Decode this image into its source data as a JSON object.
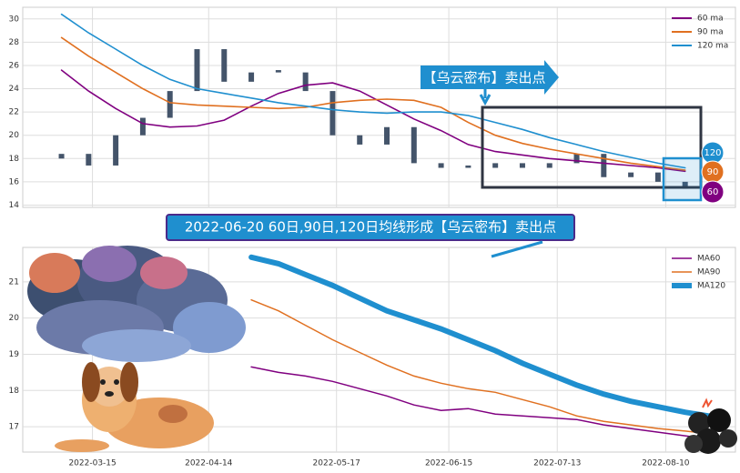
{
  "chart_data": [
    {
      "type": "candlestick",
      "x": [
        "2022-03-07",
        "2022-03-14",
        "2022-03-21",
        "2022-03-28",
        "2022-04-04",
        "2022-04-11",
        "2022-04-18",
        "2022-04-25",
        "2022-05-02",
        "2022-05-09",
        "2022-05-16",
        "2022-05-23",
        "2022-05-30",
        "2022-06-06",
        "2022-06-13",
        "2022-06-20",
        "2022-06-27",
        "2022-07-04",
        "2022-07-11",
        "2022-07-18",
        "2022-07-25",
        "2022-08-01",
        "2022-08-08",
        "2022-08-15"
      ],
      "open": [
        18.0,
        18.4,
        17.4,
        20.0,
        21.5,
        23.8,
        27.4,
        24.6,
        25.4,
        25.4,
        23.8,
        20.0,
        19.2,
        20.7,
        17.6,
        17.2,
        17.2,
        17.6,
        17.2,
        17.6,
        18.4,
        16.4,
        16.8,
        16.0
      ],
      "close": [
        18.4,
        17.4,
        20.0,
        21.5,
        23.8,
        27.4,
        24.6,
        25.4,
        25.6,
        23.8,
        20.0,
        19.2,
        20.7,
        17.6,
        17.2,
        17.4,
        17.6,
        17.2,
        17.6,
        18.4,
        16.4,
        16.8,
        16.0,
        15.4
      ],
      "color": "#44546a",
      "series": [
        {
          "name": "60 ma",
          "color": "#800080",
          "values": [
            25.6,
            23.8,
            22.3,
            21.0,
            20.7,
            20.8,
            21.3,
            22.5,
            23.6,
            24.3,
            24.5,
            23.8,
            22.6,
            21.4,
            20.4,
            19.2,
            18.6,
            18.3,
            18.0,
            17.8,
            17.6,
            17.4,
            17.2,
            16.9
          ]
        },
        {
          "name": "90 ma",
          "color": "#e07020",
          "values": [
            28.4,
            26.8,
            25.4,
            24.0,
            22.8,
            22.6,
            22.5,
            22.4,
            22.3,
            22.4,
            22.8,
            23.0,
            23.1,
            23.0,
            22.4,
            21.1,
            20.0,
            19.3,
            18.8,
            18.4,
            18.0,
            17.6,
            17.3,
            17.0
          ]
        },
        {
          "name": "120 ma",
          "color": "#1f8fcf",
          "values": [
            30.4,
            28.8,
            27.4,
            26.0,
            24.8,
            24.0,
            23.6,
            23.2,
            22.8,
            22.5,
            22.2,
            22.0,
            21.9,
            22.0,
            22.0,
            21.7,
            21.1,
            20.5,
            19.8,
            19.2,
            18.6,
            18.1,
            17.6,
            17.2
          ]
        }
      ],
      "xlim": [
        "2022-02-25",
        "2022-08-28"
      ],
      "xticks": [
        "2022-03-15",
        "2022-04-14",
        "2022-05-17",
        "2022-06-15",
        "2022-07-13",
        "2022-08-10"
      ],
      "show_xtick_labels": false,
      "ylim": [
        13.8,
        31
      ],
      "yticks": [
        14,
        16,
        18,
        20,
        22,
        24,
        26,
        28,
        30
      ],
      "grid": true,
      "legend": "upper right",
      "callout": "【乌云密布】卖出点",
      "end_labels": [
        "120",
        "90",
        "60"
      ]
    },
    {
      "type": "line",
      "title": "2022-06-20 60日,90日,120日均线形成【乌云密布】卖出点",
      "x": [
        "2022-04-25",
        "2022-05-02",
        "2022-05-09",
        "2022-05-16",
        "2022-05-23",
        "2022-05-30",
        "2022-06-06",
        "2022-06-13",
        "2022-06-20",
        "2022-06-27",
        "2022-07-04",
        "2022-07-11",
        "2022-07-18",
        "2022-07-25",
        "2022-08-01",
        "2022-08-08",
        "2022-08-15",
        "2022-08-22"
      ],
      "series": [
        {
          "name": "MA60",
          "color": "#800080",
          "line_width": 1.5,
          "values": [
            18.65,
            18.5,
            18.4,
            18.25,
            18.05,
            17.85,
            17.6,
            17.45,
            17.5,
            17.35,
            17.3,
            17.25,
            17.2,
            17.05,
            16.95,
            16.85,
            16.75,
            16.65
          ]
        },
        {
          "name": "MA90",
          "color": "#e07020",
          "line_width": 1.5,
          "values": [
            20.5,
            20.2,
            19.8,
            19.4,
            19.05,
            18.7,
            18.4,
            18.2,
            18.05,
            17.95,
            17.75,
            17.55,
            17.3,
            17.15,
            17.05,
            16.95,
            16.88,
            16.8
          ]
        },
        {
          "name": "MA120",
          "color": "#1f8fcf",
          "line_width": 6,
          "values": [
            21.68,
            21.5,
            21.2,
            20.9,
            20.55,
            20.2,
            19.95,
            19.7,
            19.4,
            19.1,
            18.75,
            18.45,
            18.15,
            17.9,
            17.7,
            17.55,
            17.4,
            17.28
          ]
        }
      ],
      "xlim": [
        "2022-02-25",
        "2022-08-28"
      ],
      "xticks": [
        "2022-03-15",
        "2022-04-14",
        "2022-05-17",
        "2022-06-15",
        "2022-07-13",
        "2022-08-10"
      ],
      "show_xtick_labels": true,
      "ylim": [
        16.3,
        21.95
      ],
      "yticks": [
        17,
        18,
        19,
        20,
        21
      ],
      "grid": true,
      "legend": "upper right"
    }
  ]
}
